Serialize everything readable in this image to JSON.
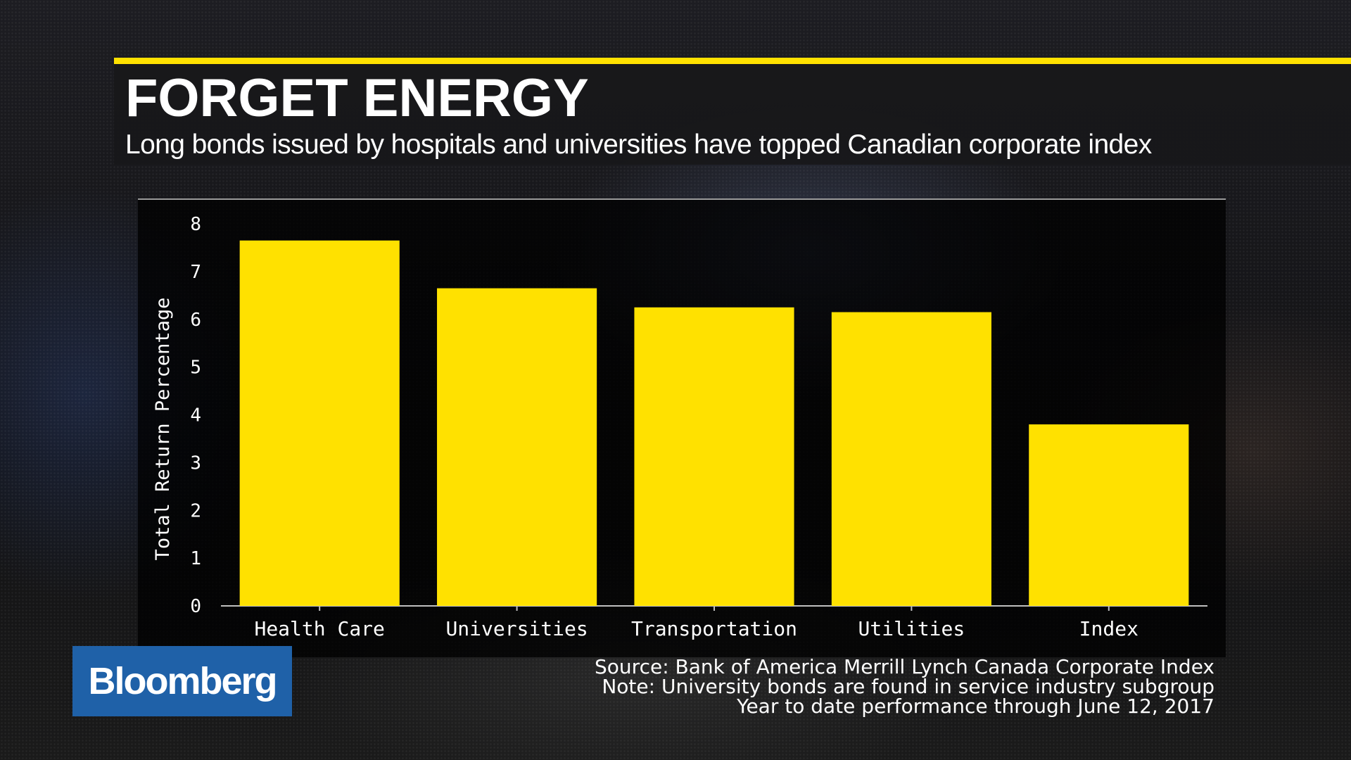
{
  "header": {
    "title": "FORGET ENERGY",
    "subtitle": "Long bonds issued by hospitals and universities have topped Canadian corporate index"
  },
  "colors": {
    "accent": "#ffe100",
    "bar": "#ffe100",
    "brand": "#1f61a8",
    "axis": "#bfbfbf"
  },
  "chart_data": {
    "type": "bar",
    "categories": [
      "Health Care",
      "Universities",
      "Transportation",
      "Utilities",
      "Index"
    ],
    "values": [
      7.65,
      6.65,
      6.25,
      6.15,
      3.8
    ],
    "ylabel": "Total Return Percentage",
    "xlabel": "",
    "ylim": [
      0,
      8
    ],
    "yticks": [
      0,
      1,
      2,
      3,
      4,
      5,
      6,
      7,
      8
    ],
    "grid": false,
    "legend": "none"
  },
  "logo": {
    "text": "Bloomberg"
  },
  "notes": {
    "source": "Source: Bank of America Merrill Lynch Canada Corporate Index",
    "note": "Note: University bonds are found in service industry subgroup",
    "period": "Year to date performance through June 12, 2017"
  }
}
